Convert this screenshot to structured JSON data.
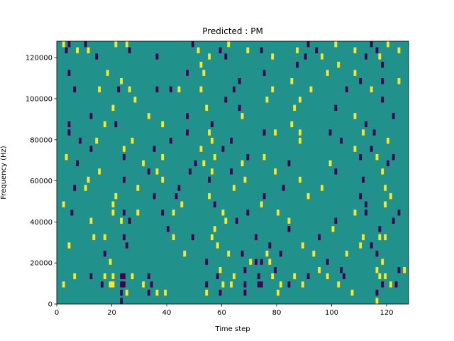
{
  "chart_data": {
    "type": "heatmap",
    "title": "Predicted : PM",
    "xlabel": "Time step",
    "ylabel": "Frequency (Hz)",
    "xlim": [
      0,
      128
    ],
    "ylim": [
      0,
      128000
    ],
    "n_cols": 128,
    "n_rows": 128,
    "x_ticks": [
      0,
      20,
      40,
      60,
      80,
      100,
      120
    ],
    "y_ticks": [
      0,
      20000,
      40000,
      60000,
      80000,
      100000,
      120000
    ],
    "grid": false,
    "colors": {
      "background": "#21918c",
      "high": "#fde725",
      "low": "#440154"
    },
    "cells": [
      [
        2,
        127,
        1
      ],
      [
        4,
        127,
        0
      ],
      [
        10,
        127,
        0
      ],
      [
        21,
        127,
        1
      ],
      [
        25,
        127,
        1
      ],
      [
        49,
        127,
        0
      ],
      [
        62,
        127,
        1
      ],
      [
        91,
        127,
        0
      ],
      [
        101,
        127,
        1
      ],
      [
        114,
        127,
        0
      ],
      [
        120,
        127,
        1
      ],
      [
        3,
        124,
        0
      ],
      [
        7,
        124,
        1
      ],
      [
        11,
        124,
        1
      ],
      [
        26,
        124,
        0
      ],
      [
        51,
        124,
        1
      ],
      [
        59,
        124,
        0
      ],
      [
        69,
        124,
        1
      ],
      [
        74,
        124,
        0
      ],
      [
        87,
        124,
        1
      ],
      [
        94,
        124,
        0
      ],
      [
        108,
        124,
        1
      ],
      [
        116,
        124,
        0
      ],
      [
        124,
        124,
        1
      ],
      [
        14,
        121,
        0
      ],
      [
        36,
        121,
        0
      ],
      [
        55,
        121,
        1
      ],
      [
        61,
        121,
        0
      ],
      [
        78,
        121,
        1
      ],
      [
        90,
        121,
        0
      ],
      [
        96,
        121,
        1
      ],
      [
        112,
        121,
        0
      ],
      [
        117,
        121,
        1
      ],
      [
        52,
        117,
        1
      ],
      [
        87,
        117,
        0
      ],
      [
        102,
        117,
        1
      ],
      [
        118,
        117,
        0
      ],
      [
        4,
        113,
        0
      ],
      [
        18,
        113,
        1
      ],
      [
        47,
        113,
        0
      ],
      [
        53,
        113,
        1
      ],
      [
        75,
        113,
        0
      ],
      [
        98,
        113,
        1
      ],
      [
        108,
        113,
        1
      ],
      [
        23,
        109,
        1
      ],
      [
        66,
        109,
        0
      ],
      [
        85,
        109,
        1
      ],
      [
        110,
        109,
        0
      ],
      [
        118,
        109,
        0
      ],
      [
        124,
        109,
        1
      ],
      [
        6,
        105,
        0
      ],
      [
        15,
        105,
        1
      ],
      [
        22,
        105,
        0
      ],
      [
        26,
        105,
        1
      ],
      [
        36,
        105,
        0
      ],
      [
        41,
        105,
        0
      ],
      [
        44,
        105,
        1
      ],
      [
        52,
        105,
        1
      ],
      [
        64,
        105,
        0
      ],
      [
        78,
        105,
        1
      ],
      [
        92,
        105,
        1
      ],
      [
        105,
        105,
        0
      ],
      [
        114,
        105,
        1
      ],
      [
        28,
        100,
        1
      ],
      [
        61,
        100,
        0
      ],
      [
        76,
        100,
        1
      ],
      [
        88,
        100,
        1
      ],
      [
        118,
        100,
        0
      ],
      [
        20,
        96,
        1
      ],
      [
        54,
        96,
        1
      ],
      [
        66,
        96,
        0
      ],
      [
        86,
        96,
        1
      ],
      [
        101,
        96,
        0
      ],
      [
        12,
        92,
        0
      ],
      [
        33,
        92,
        1
      ],
      [
        47,
        92,
        0
      ],
      [
        67,
        92,
        1
      ],
      [
        108,
        92,
        1
      ],
      [
        122,
        92,
        0
      ],
      [
        4,
        88,
        0
      ],
      [
        17,
        88,
        1
      ],
      [
        21,
        88,
        0
      ],
      [
        38,
        88,
        1
      ],
      [
        56,
        88,
        0
      ],
      [
        85,
        88,
        1
      ],
      [
        112,
        88,
        0
      ],
      [
        4,
        84,
        0
      ],
      [
        47,
        84,
        0
      ],
      [
        55,
        84,
        1
      ],
      [
        75,
        84,
        0
      ],
      [
        79,
        84,
        1
      ],
      [
        88,
        84,
        1
      ],
      [
        99,
        84,
        0
      ],
      [
        111,
        84,
        1
      ],
      [
        115,
        84,
        0
      ],
      [
        8,
        80,
        0
      ],
      [
        14,
        80,
        1
      ],
      [
        27,
        80,
        1
      ],
      [
        41,
        80,
        0
      ],
      [
        56,
        80,
        1
      ],
      [
        63,
        80,
        0
      ],
      [
        88,
        80,
        1
      ],
      [
        103,
        80,
        0
      ],
      [
        120,
        80,
        1
      ],
      [
        12,
        76,
        0
      ],
      [
        24,
        76,
        1
      ],
      [
        35,
        76,
        0
      ],
      [
        52,
        76,
        1
      ],
      [
        60,
        76,
        0
      ],
      [
        108,
        76,
        1
      ],
      [
        114,
        76,
        0
      ],
      [
        3,
        72,
        1
      ],
      [
        24,
        72,
        0
      ],
      [
        38,
        72,
        1
      ],
      [
        57,
        72,
        1
      ],
      [
        69,
        72,
        0
      ],
      [
        75,
        72,
        1
      ],
      [
        110,
        72,
        0
      ],
      [
        116,
        72,
        1
      ],
      [
        122,
        72,
        0
      ],
      [
        7,
        69,
        0
      ],
      [
        31,
        69,
        1
      ],
      [
        50,
        69,
        0
      ],
      [
        53,
        69,
        1
      ],
      [
        67,
        69,
        1
      ],
      [
        84,
        69,
        0
      ],
      [
        99,
        69,
        1
      ],
      [
        120,
        69,
        0
      ],
      [
        15,
        65,
        1
      ],
      [
        33,
        65,
        0
      ],
      [
        36,
        65,
        1
      ],
      [
        48,
        65,
        0
      ],
      [
        56,
        65,
        1
      ],
      [
        63,
        65,
        0
      ],
      [
        79,
        65,
        1
      ],
      [
        101,
        65,
        0
      ],
      [
        118,
        65,
        1
      ],
      [
        11,
        61,
        1
      ],
      [
        24,
        61,
        0
      ],
      [
        38,
        61,
        1
      ],
      [
        55,
        61,
        0
      ],
      [
        68,
        61,
        1
      ],
      [
        88,
        61,
        1
      ],
      [
        111,
        61,
        0
      ],
      [
        6,
        57,
        0
      ],
      [
        10,
        57,
        1
      ],
      [
        29,
        57,
        1
      ],
      [
        44,
        57,
        0
      ],
      [
        64,
        57,
        1
      ],
      [
        82,
        57,
        0
      ],
      [
        96,
        57,
        1
      ],
      [
        119,
        57,
        1
      ],
      [
        21,
        53,
        1
      ],
      [
        35,
        53,
        0
      ],
      [
        43,
        53,
        0
      ],
      [
        55,
        53,
        1
      ],
      [
        75,
        53,
        0
      ],
      [
        91,
        53,
        1
      ],
      [
        110,
        53,
        0
      ],
      [
        121,
        53,
        1
      ],
      [
        2,
        49,
        1
      ],
      [
        20,
        49,
        1
      ],
      [
        45,
        49,
        1
      ],
      [
        57,
        49,
        0
      ],
      [
        74,
        49,
        1
      ],
      [
        112,
        49,
        0
      ],
      [
        119,
        49,
        1
      ],
      [
        5,
        45,
        0
      ],
      [
        20,
        45,
        1
      ],
      [
        24,
        45,
        0
      ],
      [
        29,
        45,
        1
      ],
      [
        38,
        45,
        0
      ],
      [
        42,
        45,
        1
      ],
      [
        60,
        45,
        1
      ],
      [
        69,
        45,
        0
      ],
      [
        80,
        45,
        1
      ],
      [
        108,
        45,
        1
      ],
      [
        112,
        45,
        0
      ],
      [
        124,
        45,
        0
      ],
      [
        12,
        41,
        1
      ],
      [
        23,
        41,
        1
      ],
      [
        26,
        41,
        0
      ],
      [
        61,
        41,
        1
      ],
      [
        65,
        41,
        0
      ],
      [
        84,
        41,
        1
      ],
      [
        101,
        41,
        0
      ],
      [
        122,
        41,
        0
      ],
      [
        40,
        37,
        0
      ],
      [
        57,
        37,
        1
      ],
      [
        84,
        37,
        0
      ],
      [
        100,
        37,
        1
      ],
      [
        117,
        37,
        0
      ],
      [
        13,
        33,
        1
      ],
      [
        17,
        33,
        1
      ],
      [
        24,
        33,
        0
      ],
      [
        42,
        33,
        1
      ],
      [
        49,
        33,
        0
      ],
      [
        56,
        33,
        1
      ],
      [
        72,
        33,
        0
      ],
      [
        95,
        33,
        0
      ],
      [
        111,
        33,
        1
      ],
      [
        117,
        33,
        1
      ],
      [
        119,
        33,
        1
      ],
      [
        4,
        29,
        1
      ],
      [
        25,
        29,
        0
      ],
      [
        58,
        29,
        1
      ],
      [
        77,
        29,
        0
      ],
      [
        89,
        29,
        1
      ],
      [
        110,
        29,
        1
      ],
      [
        114,
        29,
        0
      ],
      [
        17,
        25,
        0
      ],
      [
        46,
        25,
        1
      ],
      [
        62,
        25,
        1
      ],
      [
        67,
        25,
        0
      ],
      [
        76,
        25,
        1
      ],
      [
        81,
        25,
        0
      ],
      [
        93,
        25,
        1
      ],
      [
        105,
        25,
        1
      ],
      [
        116,
        25,
        0
      ],
      [
        19,
        21,
        1
      ],
      [
        54,
        21,
        0
      ],
      [
        70,
        21,
        1
      ],
      [
        72,
        21,
        0
      ],
      [
        74,
        21,
        0
      ],
      [
        77,
        21,
        1
      ],
      [
        98,
        21,
        0
      ],
      [
        118,
        21,
        1
      ],
      [
        59,
        17,
        1
      ],
      [
        68,
        17,
        0
      ],
      [
        79,
        17,
        0
      ],
      [
        95,
        17,
        1
      ],
      [
        103,
        17,
        0
      ],
      [
        116,
        17,
        1
      ],
      [
        124,
        17,
        0
      ],
      [
        126,
        17,
        1
      ],
      [
        6,
        14,
        1
      ],
      [
        12,
        14,
        0
      ],
      [
        17,
        14,
        1
      ],
      [
        20,
        14,
        1
      ],
      [
        23,
        14,
        0
      ],
      [
        24,
        14,
        0
      ],
      [
        27,
        14,
        1
      ],
      [
        33,
        14,
        0
      ],
      [
        58,
        14,
        0
      ],
      [
        64,
        14,
        1
      ],
      [
        73,
        14,
        0
      ],
      [
        78,
        14,
        1
      ],
      [
        86,
        14,
        1
      ],
      [
        91,
        14,
        0
      ],
      [
        98,
        14,
        1
      ],
      [
        104,
        14,
        0
      ],
      [
        117,
        14,
        1
      ],
      [
        119,
        14,
        1
      ],
      [
        2,
        10,
        1
      ],
      [
        16,
        10,
        0
      ],
      [
        19,
        10,
        1
      ],
      [
        20,
        10,
        1
      ],
      [
        23,
        10,
        0
      ],
      [
        24,
        10,
        0
      ],
      [
        31,
        10,
        1
      ],
      [
        34,
        10,
        0
      ],
      [
        54,
        10,
        0
      ],
      [
        60,
        10,
        1
      ],
      [
        63,
        10,
        1
      ],
      [
        68,
        10,
        0
      ],
      [
        73,
        10,
        0
      ],
      [
        74,
        10,
        0
      ],
      [
        81,
        10,
        1
      ],
      [
        84,
        10,
        0
      ],
      [
        89,
        10,
        1
      ],
      [
        102,
        10,
        1
      ],
      [
        118,
        10,
        0
      ],
      [
        121,
        10,
        1
      ],
      [
        123,
        10,
        0
      ],
      [
        23,
        6,
        0
      ],
      [
        25,
        6,
        1
      ],
      [
        33,
        6,
        0
      ],
      [
        36,
        6,
        1
      ],
      [
        39,
        6,
        1
      ],
      [
        54,
        6,
        1
      ],
      [
        59,
        6,
        0
      ],
      [
        68,
        6,
        0
      ],
      [
        80,
        6,
        1
      ],
      [
        107,
        6,
        1
      ],
      [
        116,
        6,
        0
      ],
      [
        23,
        2,
        0
      ],
      [
        116,
        2,
        1
      ]
    ]
  }
}
